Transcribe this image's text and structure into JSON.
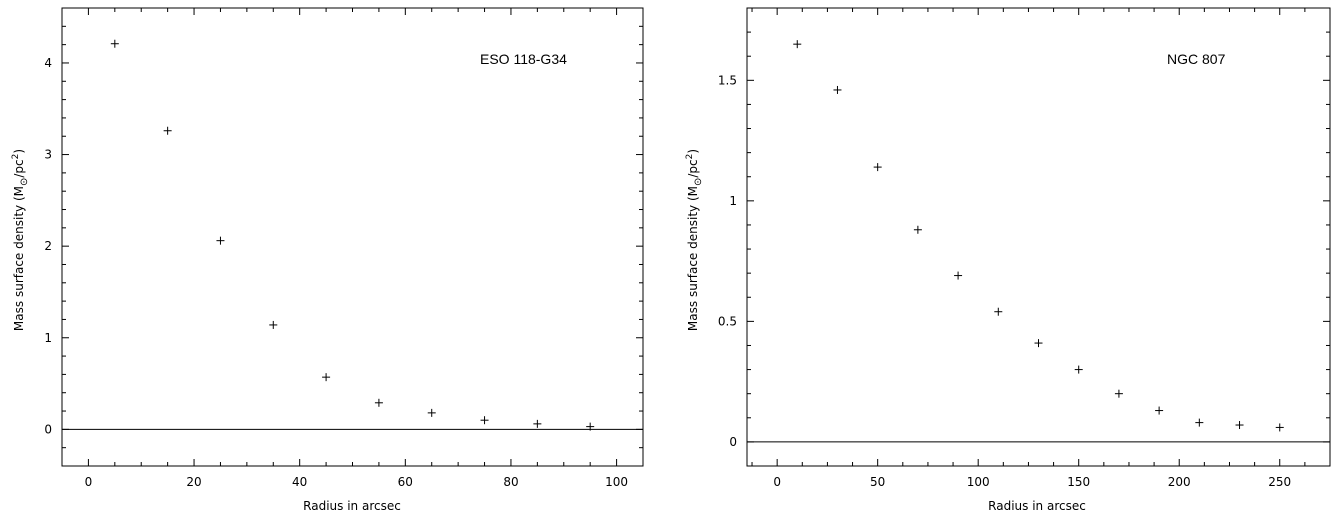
{
  "chart_data": [
    {
      "type": "scatter",
      "title": "ESO 118-G34",
      "xlabel": "Radius in arcsec",
      "ylabel_main": "Mass surface density (M",
      "ylabel_sub": "⊙",
      "ylabel_mid": "/pc",
      "ylabel_sup": "2",
      "ylabel_end": ")",
      "xlim": [
        -5,
        105
      ],
      "ylim": [
        -0.4,
        4.6
      ],
      "xticks": [
        0,
        20,
        40,
        60,
        80,
        100
      ],
      "xtick_labels": [
        "0",
        "20",
        "40",
        "60",
        "80",
        "100"
      ],
      "yticks": [
        0,
        1,
        2,
        3,
        4
      ],
      "ytick_labels": [
        "0",
        "1",
        "2",
        "3",
        "4"
      ],
      "zero_line": true,
      "x": [
        5,
        15,
        25,
        35,
        45,
        55,
        65,
        75,
        85,
        95
      ],
      "y": [
        4.21,
        3.26,
        2.06,
        1.14,
        0.57,
        0.29,
        0.18,
        0.1,
        0.06,
        0.03
      ]
    },
    {
      "type": "scatter",
      "title": "NGC 807",
      "xlabel": "Radius in arcsec",
      "ylabel_main": "Mass surface density (M",
      "ylabel_sub": "⊙",
      "ylabel_mid": "/pc",
      "ylabel_sup": "2",
      "ylabel_end": ")",
      "xlim": [
        -15,
        275
      ],
      "ylim": [
        -0.1,
        1.8
      ],
      "xticks": [
        0,
        50,
        100,
        150,
        200,
        250
      ],
      "xtick_labels": [
        "0",
        "50",
        "100",
        "150",
        "200",
        "250"
      ],
      "yticks": [
        0,
        0.5,
        1,
        1.5
      ],
      "ytick_labels": [
        "0",
        "0.5",
        "1",
        "1.5"
      ],
      "zero_line": true,
      "x": [
        10,
        30,
        50,
        70,
        90,
        110,
        130,
        150,
        170,
        190,
        210,
        230,
        250
      ],
      "y": [
        1.65,
        1.46,
        1.14,
        0.88,
        0.69,
        0.54,
        0.41,
        0.3,
        0.2,
        0.13,
        0.08,
        0.07,
        0.06
      ]
    }
  ]
}
